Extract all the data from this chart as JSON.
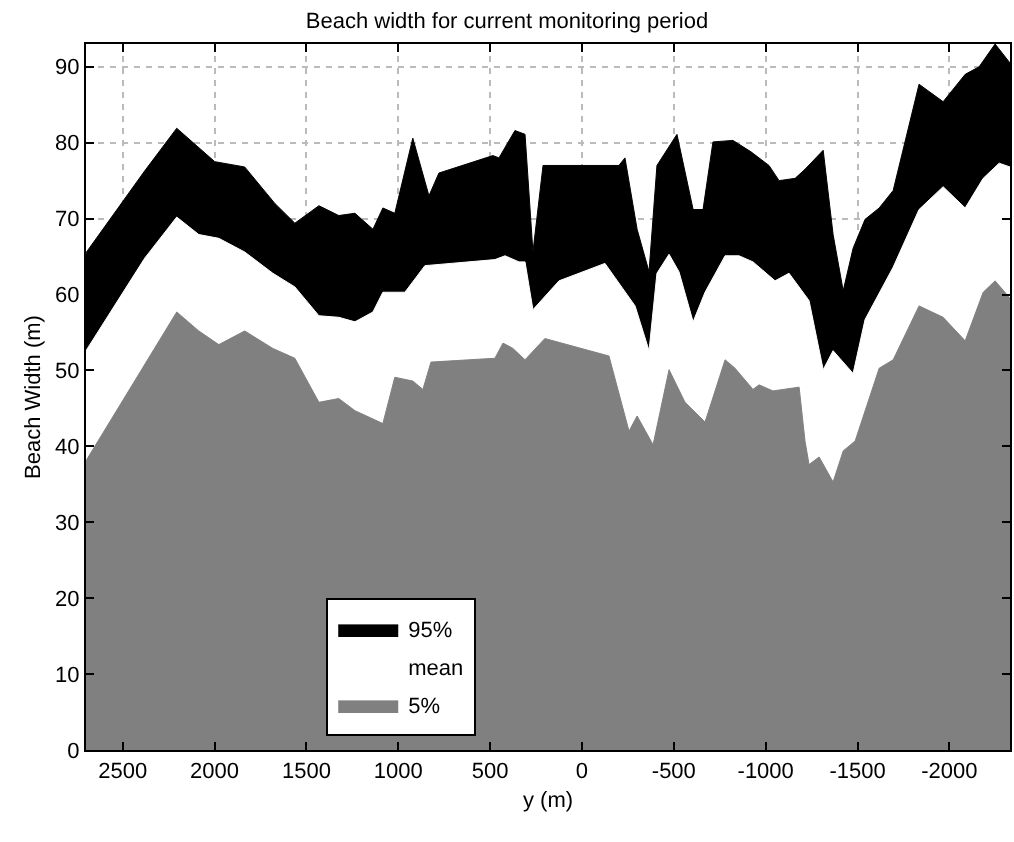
{
  "chart_data": {
    "type": "area",
    "title": "Beach width for current monitoring period",
    "xlabel": "y (m)",
    "ylabel": "Beach Width (m)",
    "xlim": [
      2700,
      -2330
    ],
    "xticks": [
      2500,
      2000,
      1500,
      1000,
      500,
      0,
      -500,
      -1000,
      -1500,
      -2000
    ],
    "ylim": [
      0,
      93
    ],
    "yticks": [
      0,
      10,
      20,
      30,
      40,
      50,
      60,
      70,
      80,
      90
    ],
    "grid": true,
    "legend": "bottom left",
    "series": [
      {
        "name": "95%",
        "color": "#000000",
        "x": [
          2700,
          2380,
          2206,
          1999,
          1836,
          1672,
          1563,
          1432,
          1324,
          1236,
          1138,
          1084,
          1019,
          921,
          833,
          779,
          485,
          452,
          365,
          310,
          267,
          212,
          125,
          -201,
          -234,
          -300,
          -365,
          -408,
          -517,
          -605,
          -659,
          -713,
          -822,
          -920,
          -1018,
          -1073,
          -1160,
          -1214,
          -1313,
          -1367,
          -1422,
          -1476,
          -1541,
          -1618,
          -1694,
          -1835,
          -1966,
          -2086,
          -2162,
          -2249,
          -2330
        ],
        "values": [
          65.5,
          76.3,
          81.9,
          77.5,
          76.8,
          72,
          69.4,
          71.7,
          70.4,
          70.7,
          68.6,
          71.4,
          70.7,
          80.6,
          73,
          76,
          78.3,
          78,
          81.6,
          81.1,
          65.6,
          77,
          77,
          77,
          78,
          68.6,
          63,
          77,
          81.1,
          71.2,
          71.2,
          80.1,
          80.3,
          78.8,
          77,
          75,
          75.3,
          76.5,
          79,
          67.9,
          60.5,
          66.1,
          69.9,
          71.4,
          73.7,
          87.7,
          85.4,
          89,
          90,
          93,
          90.5
        ]
      },
      {
        "name": "mean",
        "color": "#ffffff",
        "x": [
          2700,
          2380,
          2206,
          2086,
          1977,
          1836,
          1683,
          1563,
          1432,
          1324,
          1236,
          1138,
          1084,
          964,
          855,
          474,
          419,
          343,
          310,
          267,
          125,
          -125,
          -289,
          -365,
          -408,
          -474,
          -528,
          -605,
          -670,
          -779,
          -855,
          -931,
          -1051,
          -1127,
          -1236,
          -1313,
          -1367,
          -1476,
          -1541,
          -1694,
          -1835,
          -1966,
          -2086,
          -2184,
          -2271,
          -2330
        ],
        "values": [
          52.6,
          64.8,
          70.2,
          67.9,
          67.4,
          65.6,
          62.8,
          61,
          57.2,
          57,
          56.4,
          57.7,
          60.3,
          60.3,
          63.8,
          64.6,
          65.1,
          64.3,
          64.3,
          58,
          61.8,
          64.1,
          58.5,
          52.6,
          62.8,
          65.3,
          63,
          56.4,
          60.3,
          65.1,
          65.1,
          64.3,
          61.8,
          62.8,
          59.2,
          50.1,
          52.6,
          49.6,
          56.7,
          63.6,
          71.2,
          74.2,
          71.4,
          75.3,
          77.3,
          76.8
        ]
      },
      {
        "name": "5%",
        "color": "#808080",
        "x": [
          2700,
          2206,
          2086,
          1977,
          1836,
          1683,
          1563,
          1432,
          1324,
          1236,
          1084,
          1019,
          921,
          866,
          822,
          474,
          430,
          376,
          310,
          202,
          -147,
          -256,
          -300,
          -387,
          -474,
          -561,
          -670,
          -779,
          -833,
          -931,
          -964,
          -1040,
          -1182,
          -1214,
          -1236,
          -1291,
          -1367,
          -1422,
          -1487,
          -1618,
          -1694,
          -1835,
          -1966,
          -2086,
          -2184,
          -2249,
          -2330
        ],
        "values": [
          38.1,
          57.7,
          55.2,
          53.4,
          55.2,
          52.9,
          51.6,
          45.8,
          46.3,
          44.7,
          43,
          49.1,
          48.6,
          47.5,
          51.1,
          51.6,
          53.6,
          52.9,
          51.4,
          54.2,
          51.9,
          42,
          44,
          40.2,
          50.1,
          45.8,
          43.2,
          51.4,
          50.3,
          47.5,
          48.1,
          47.3,
          47.8,
          40.7,
          37.6,
          38.6,
          35.3,
          39.4,
          40.7,
          50.3,
          51.4,
          58.5,
          57,
          53.9,
          60.3,
          61.8,
          59.5
        ]
      }
    ]
  }
}
